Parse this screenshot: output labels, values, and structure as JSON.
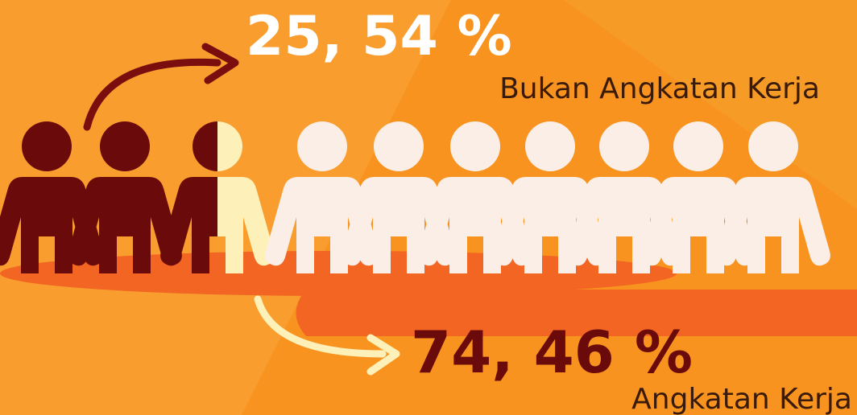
{
  "groups": [
    {
      "share": "25, 54 %",
      "label": "Bukan Angkatan Kerja"
    },
    {
      "share": "74, 46 %",
      "label": "Angkatan Kerja"
    }
  ]
}
